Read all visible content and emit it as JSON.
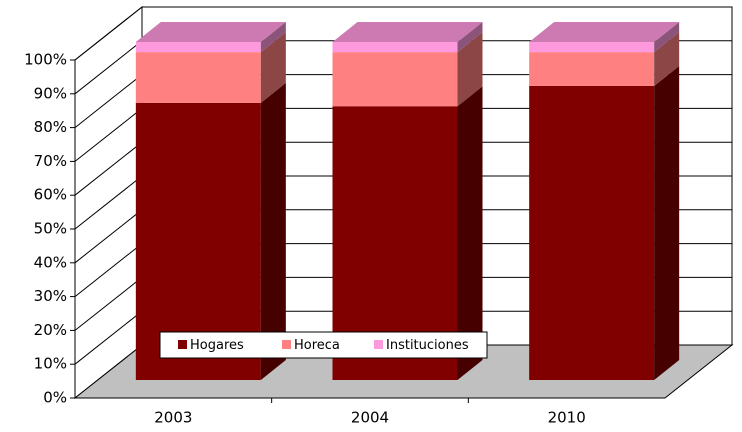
{
  "chart_data": {
    "type": "bar",
    "stacked": true,
    "categories": [
      "2003",
      "2004",
      "2010"
    ],
    "series": [
      {
        "name": "Hogares",
        "color": "#800000",
        "values": [
          82,
          81,
          87
        ]
      },
      {
        "name": "Horeca",
        "color": "#ff8080",
        "values": [
          15,
          16,
          10
        ]
      },
      {
        "name": "Instituciones",
        "color": "#ff99dd",
        "values": [
          3,
          3,
          3
        ]
      }
    ],
    "ylim": [
      0,
      100
    ],
    "yticks": [
      {
        "value": 0,
        "label": "0%"
      },
      {
        "value": 10,
        "label": "10%"
      },
      {
        "value": 20,
        "label": "20%"
      },
      {
        "value": 30,
        "label": "30%"
      },
      {
        "value": 40,
        "label": "40%"
      },
      {
        "value": 50,
        "label": "50%"
      },
      {
        "value": 60,
        "label": "60%"
      },
      {
        "value": 70,
        "label": "70%"
      },
      {
        "value": 80,
        "label": "80%"
      },
      {
        "value": 90,
        "label": "90%"
      },
      {
        "value": 100,
        "label": "100%"
      }
    ],
    "grid": true,
    "legend": "bottom"
  }
}
